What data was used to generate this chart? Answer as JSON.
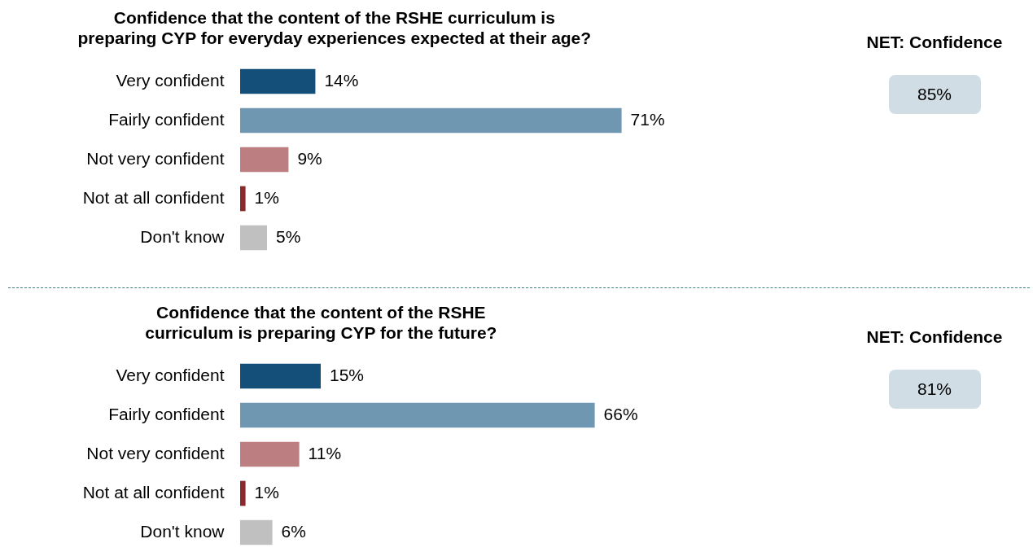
{
  "chart_data": [
    {
      "type": "bar",
      "orientation": "horizontal",
      "title": "Confidence that the content of the RSHE curriculum is preparing CYP for everyday experiences expected at their age?",
      "categories": [
        "Very confident",
        "Fairly confident",
        "Not very confident",
        "Not at all confident",
        "Don't know"
      ],
      "values": [
        14,
        71,
        9,
        1,
        5
      ],
      "colors": [
        "#134f78",
        "#7097b2",
        "#bc7e80",
        "#8b2a2e",
        "#c0c0c0"
      ],
      "value_labels": [
        "14%",
        "71%",
        "9%",
        "1%",
        "5%"
      ]
    },
    {
      "type": "other",
      "title": "NET: Confidence",
      "annotations": [
        "85%"
      ]
    },
    {
      "type": "bar",
      "orientation": "horizontal",
      "title": "Confidence that the content of the RSHE curriculum is preparing CYP for the future?",
      "categories": [
        "Very confident",
        "Fairly confident",
        "Not very confident",
        "Not at all confident",
        "Don't know"
      ],
      "values": [
        15,
        66,
        11,
        1,
        6
      ],
      "colors": [
        "#134f78",
        "#7097b2",
        "#bc7e80",
        "#8b2a2e",
        "#c0c0c0"
      ],
      "value_labels": [
        "15%",
        "66%",
        "11%",
        "1%",
        "6%"
      ]
    },
    {
      "type": "other",
      "title": "NET: Confidence",
      "annotations": [
        "81%"
      ]
    }
  ]
}
